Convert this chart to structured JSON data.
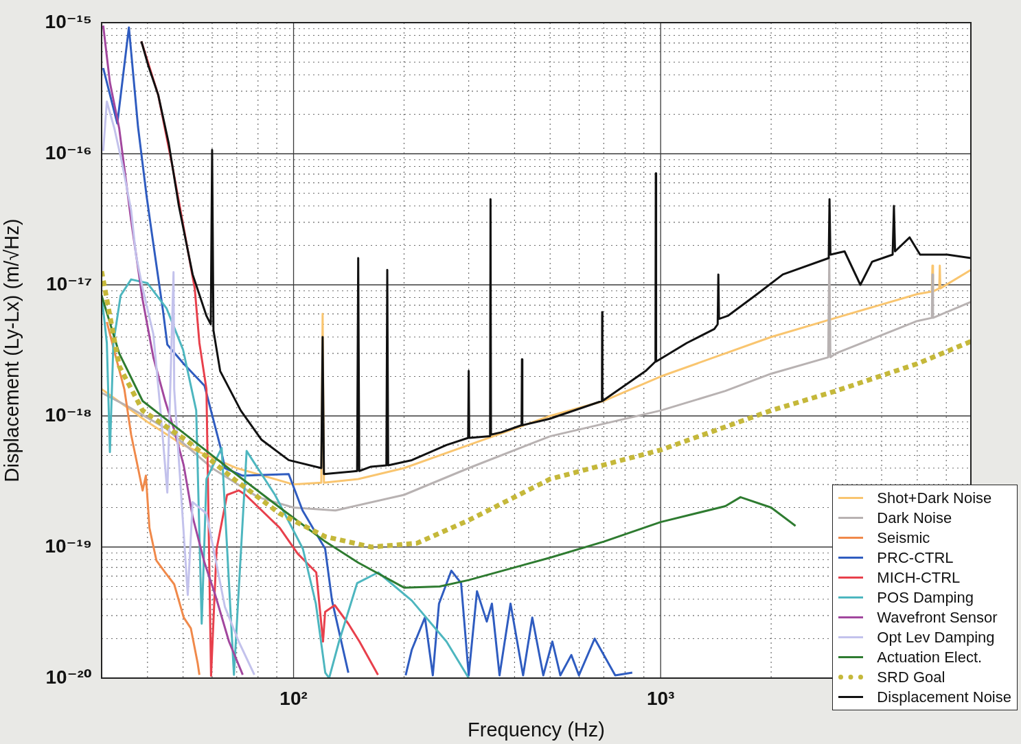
{
  "chart_data": {
    "type": "line",
    "xlabel": "Frequency (Hz)",
    "ylabel": "Displacement (Ly-Lx) (m/√Hz)",
    "log": "xy",
    "grid": true,
    "legend": "bottom right",
    "xlim": [
      30,
      7000
    ],
    "ylim": [
      1e-20,
      1e-15
    ],
    "xticks": [
      {
        "value": 40,
        "label": null
      },
      {
        "value": 50,
        "label": null
      },
      {
        "value": 60,
        "label": null
      },
      {
        "value": 70,
        "label": null
      },
      {
        "value": 80,
        "label": null
      },
      {
        "value": 90,
        "label": null
      },
      {
        "value": 100,
        "label": "10²"
      },
      {
        "value": 200,
        "label": null
      },
      {
        "value": 300,
        "label": null
      },
      {
        "value": 400,
        "label": null
      },
      {
        "value": 500,
        "label": null
      },
      {
        "value": 600,
        "label": null
      },
      {
        "value": 700,
        "label": null
      },
      {
        "value": 800,
        "label": null
      },
      {
        "value": 900,
        "label": null
      },
      {
        "value": 1000,
        "label": "10³"
      },
      {
        "value": 2000,
        "label": null
      },
      {
        "value": 3000,
        "label": null
      },
      {
        "value": 4000,
        "label": null
      },
      {
        "value": 5000,
        "label": null
      },
      {
        "value": 6000,
        "label": null
      }
    ],
    "yticks": [
      {
        "value": 1e-20,
        "label": "10⁻²⁰"
      },
      {
        "value": 2e-20,
        "label": null
      },
      {
        "value": 3e-20,
        "label": null
      },
      {
        "value": 4e-20,
        "label": null
      },
      {
        "value": 5e-20,
        "label": null
      },
      {
        "value": 6e-20,
        "label": null
      },
      {
        "value": 7e-20,
        "label": null
      },
      {
        "value": 8e-20,
        "label": null
      },
      {
        "value": 9e-20,
        "label": null
      },
      {
        "value": 1e-19,
        "label": "10⁻¹⁹"
      },
      {
        "value": 2e-19,
        "label": null
      },
      {
        "value": 3e-19,
        "label": null
      },
      {
        "value": 4e-19,
        "label": null
      },
      {
        "value": 5e-19,
        "label": null
      },
      {
        "value": 6e-19,
        "label": null
      },
      {
        "value": 7e-19,
        "label": null
      },
      {
        "value": 8e-19,
        "label": null
      },
      {
        "value": 9e-19,
        "label": null
      },
      {
        "value": 1e-18,
        "label": "10⁻¹⁸"
      },
      {
        "value": 2e-18,
        "label": null
      },
      {
        "value": 3e-18,
        "label": null
      },
      {
        "value": 4e-18,
        "label": null
      },
      {
        "value": 5e-18,
        "label": null
      },
      {
        "value": 6e-18,
        "label": null
      },
      {
        "value": 7e-18,
        "label": null
      },
      {
        "value": 8e-18,
        "label": null
      },
      {
        "value": 9e-18,
        "label": null
      },
      {
        "value": 1e-17,
        "label": "10⁻¹⁷"
      },
      {
        "value": 2e-17,
        "label": null
      },
      {
        "value": 3e-17,
        "label": null
      },
      {
        "value": 4e-17,
        "label": null
      },
      {
        "value": 5e-17,
        "label": null
      },
      {
        "value": 6e-17,
        "label": null
      },
      {
        "value": 7e-17,
        "label": null
      },
      {
        "value": 8e-17,
        "label": null
      },
      {
        "value": 9e-17,
        "label": null
      },
      {
        "value": 1e-16,
        "label": "10⁻¹⁶"
      },
      {
        "value": 2e-16,
        "label": null
      },
      {
        "value": 3e-16,
        "label": null
      },
      {
        "value": 4e-16,
        "label": null
      },
      {
        "value": 5e-16,
        "label": null
      },
      {
        "value": 6e-16,
        "label": null
      },
      {
        "value": 7e-16,
        "label": null
      },
      {
        "value": 8e-16,
        "label": null
      },
      {
        "value": 9e-16,
        "label": null
      },
      {
        "value": 1e-15,
        "label": "10⁻¹⁵"
      }
    ],
    "series": [
      {
        "name": "Shot+Dark Noise",
        "color": "#f9c56f",
        "x": [
          30,
          40,
          50,
          70,
          100,
          119,
          120,
          121,
          150,
          200,
          300,
          500,
          700,
          1000,
          1500,
          2000,
          3000,
          5000,
          5480,
          5500,
          5520,
          5740,
          5760,
          5780,
          7000
        ],
        "values": [
          1.6e-18,
          9e-19,
          6e-19,
          4e-19,
          3e-19,
          3.1e-19,
          6e-18,
          3.1e-19,
          3.3e-19,
          4e-19,
          6e-19,
          1e-18,
          1.3e-18,
          2e-18,
          3e-18,
          4e-18,
          5.6e-18,
          8.5e-18,
          8.9e-18,
          1.4e-17,
          8.9e-18,
          9.4e-18,
          1.4e-17,
          9.4e-18,
          1.3e-17
        ]
      },
      {
        "name": "Dark Noise",
        "color": "#b8b2b2",
        "x": [
          30,
          35,
          45,
          60,
          80,
          100,
          130,
          200,
          300,
          500,
          1000,
          1500,
          2000,
          2860,
          2880,
          2900,
          3000,
          5000,
          5480,
          5500,
          5520,
          7000
        ],
        "values": [
          1.5e-18,
          1.2e-18,
          8e-19,
          4e-19,
          2.4e-19,
          2e-19,
          1.9e-19,
          2.5e-19,
          4e-19,
          7e-19,
          1.1e-18,
          1.55e-18,
          2.1e-18,
          2.8e-18,
          1.6e-17,
          2.8e-18,
          3e-18,
          5.3e-18,
          5.6e-18,
          1.2e-17,
          5.6e-18,
          7.4e-18
        ]
      },
      {
        "name": "Seismic",
        "color": "#f0894a",
        "x": [
          31,
          32.7,
          34.6,
          36.1,
          37.7,
          38.8,
          39.6,
          40.5,
          42.3,
          44.7,
          47.3,
          50.2,
          52.5,
          54.8,
          55.4
        ],
        "values": [
          5.2e-18,
          2.9e-18,
          1.6e-18,
          7.2e-19,
          4e-19,
          2.7e-19,
          3.5e-19,
          1.4e-19,
          7.9e-20,
          6.4e-20,
          5.2e-20,
          2.9e-20,
          2.4e-20,
          1.3e-20,
          1.06e-20
        ]
      },
      {
        "name": "PRC-CTRL",
        "color": "#2f5cc0",
        "x": [
          30.3,
          33.1,
          35.6,
          37.7,
          39.8,
          41,
          44.1,
          45.3,
          50.2,
          57.2,
          63.2,
          65,
          72.7,
          97,
          105.8,
          121.9,
          127.3,
          141,
          170,
          202,
          210,
          228,
          239.5,
          249,
          269,
          286,
          300,
          316,
          336,
          347,
          364,
          390,
          422,
          447,
          479,
          507,
          533,
          571,
          599,
          661,
          752,
          837
        ],
        "values": [
          4.5e-16,
          1.7e-16,
          9.2e-16,
          1.6e-16,
          4.7e-17,
          2.6e-17,
          6.3e-18,
          3.5e-18,
          2.5e-18,
          1.7e-18,
          5.8e-19,
          4e-19,
          3.5e-19,
          3.6e-19,
          1.9e-19,
          9.7e-20,
          3.9e-20,
          1.1e-20,
          null,
          1.05e-20,
          1.65e-20,
          2.9e-20,
          1.05e-20,
          3.7e-20,
          6.6e-20,
          5.3e-20,
          1.05e-20,
          4.6e-20,
          2.7e-20,
          3.7e-20,
          1.05e-20,
          3.7e-20,
          1.05e-20,
          2.9e-20,
          1.05e-20,
          1.9e-20,
          1.05e-20,
          1.5e-20,
          1.05e-20,
          2e-20,
          1.05e-20,
          1.1e-20
        ]
      },
      {
        "name": "MICH-CTRL",
        "color": "#e8404c",
        "x": [
          38.5,
          42.8,
          46.7,
          50.9,
          53.8,
          55.4,
          57.9,
          59.6,
          61.7,
          65.9,
          70.9,
          74,
          91.7,
          102.6,
          115.3,
          120.3,
          121.9,
          129.5,
          141,
          151.2,
          169.8
        ],
        "values": [
          7.2e-16,
          2.8e-16,
          8.2e-17,
          2.2e-17,
          9.4e-18,
          3.6e-18,
          1.6e-18,
          1.04e-20,
          9.6e-20,
          2.5e-19,
          2.7e-19,
          2.5e-19,
          1.4e-19,
          8.9e-20,
          6.4e-20,
          1.9e-20,
          3.2e-20,
          3.6e-20,
          2.6e-20,
          1.9e-20,
          1.06e-20
        ]
      },
      {
        "name": "POS Damping",
        "color": "#4db6bf",
        "x": [
          30,
          31,
          31.6,
          32.3,
          33.8,
          36.1,
          40,
          45.1,
          50,
          54.3,
          56.2,
          57.9,
          63.7,
          68.8,
          74.5,
          89,
          106,
          115,
          122,
          125,
          133,
          149,
          170,
          210,
          261,
          300
        ],
        "values": [
          8.3e-18,
          3.6e-18,
          5.3e-19,
          3.6e-18,
          8.3e-18,
          1.1e-17,
          1.03e-17,
          6.6e-18,
          3.2e-18,
          1.1e-18,
          2.6e-20,
          3.3e-19,
          5.7e-19,
          1.06e-20,
          5.4e-19,
          2.5e-19,
          9.7e-20,
          3.7e-20,
          1.1e-20,
          1e-20,
          1.9e-20,
          5.3e-20,
          6.4e-20,
          3.9e-20,
          1.9e-20,
          1e-20
        ]
      },
      {
        "name": "Wavefront Sensor",
        "color": "#a2479e",
        "x": [
          30.3,
          31.6,
          33.5,
          36.1,
          38.8,
          41.5,
          44.7,
          47.3,
          50.2,
          53.1,
          57.2,
          61.2,
          66.7,
          72.7
        ],
        "values": [
          9.5e-16,
          3.5e-16,
          1.56e-16,
          3.1e-17,
          7.7e-18,
          2.8e-18,
          1.3e-18,
          7.8e-19,
          4.2e-19,
          1.7e-19,
          7.6e-20,
          4.3e-20,
          1.9e-20,
          1.06e-20
        ]
      },
      {
        "name": "Opt Lev Damping",
        "color": "#c3c2ec",
        "x": [
          30.3,
          31,
          32.5,
          34.1,
          36.1,
          37.2,
          38.8,
          41.5,
          43.4,
          45.3,
          47.1,
          47.3,
          51.5,
          53.1,
          57.9,
          65,
          70.9,
          78.2
        ],
        "values": [
          1.05e-16,
          2.5e-16,
          1.56e-16,
          8.5e-17,
          3.7e-17,
          1.7e-17,
          9.4e-18,
          4.2e-18,
          1.1e-18,
          2.6e-19,
          1.25e-17,
          1.6e-18,
          4.3e-20,
          2.2e-19,
          1.8e-19,
          3.5e-20,
          1.9e-20,
          1.06e-20
        ]
      },
      {
        "name": "Actuation Elect.",
        "color": "#2e7b30",
        "x": [
          30,
          33.5,
          38.8,
          51.5,
          68.8,
          91.7,
          122,
          150,
          200,
          250,
          300,
          500,
          700,
          1000,
          1500,
          1650,
          2000,
          2330
        ],
        "values": [
          8.3e-18,
          3e-18,
          1.3e-18,
          7e-19,
          3.7e-19,
          2e-19,
          1.1e-19,
          7.6e-20,
          4.9e-20,
          5e-20,
          5.6e-20,
          8.3e-20,
          1.1e-19,
          1.55e-19,
          2.05e-19,
          2.4e-19,
          2e-19,
          1.45e-19
        ]
      },
      {
        "name": "SRD Goal",
        "color": "#c5b83a",
        "line_style": "dotted",
        "x": [
          30,
          31.6,
          33.5,
          38.8,
          51.5,
          68.8,
          91.7,
          122,
          163,
          217,
          300,
          500,
          1000,
          2000,
          3000,
          5000,
          7000
        ],
        "values": [
          1.27e-17,
          5.8e-18,
          2.4e-18,
          1.1e-18,
          6.4e-19,
          3.3e-19,
          1.8e-19,
          1.2e-19,
          1e-19,
          1.07e-19,
          1.6e-19,
          3.3e-19,
          5.5e-19,
          1.1e-18,
          1.55e-18,
          2.5e-18,
          3.7e-18
        ]
      },
      {
        "name": "Displacement Noise",
        "color": "#111111",
        "x": [
          38.5,
          40.2,
          42.8,
          45.7,
          48.7,
          53.1,
          57.9,
          59.5,
          60,
          60.5,
          63.1,
          71.8,
          81.7,
          97,
          119,
          120,
          121,
          149,
          150,
          151,
          162.6,
          179,
          180,
          181,
          210,
          261,
          299,
          300,
          301,
          343,
          344,
          345,
          368,
          418,
          419,
          420,
          498,
          692,
          693,
          694,
          910,
          968,
          970,
          972,
          1178,
          1400,
          1430,
          1436,
          1442,
          1524,
          1811,
          2152,
          2870,
          2884,
          2900,
          3170,
          3500,
          3767,
          4285,
          4320,
          4350,
          4768,
          5090,
          6040,
          7000
        ],
        "values": [
          7.2e-16,
          4.7e-16,
          2.8e-16,
          1.2e-16,
          4e-17,
          1.2e-17,
          5.8e-18,
          5e-18,
          1.07e-16,
          4.5e-18,
          2.2e-18,
          1.1e-18,
          6.6e-19,
          4.6e-19,
          4e-19,
          4e-18,
          3.6e-19,
          3.8e-19,
          1.6e-17,
          3.8e-19,
          4.1e-19,
          4.2e-19,
          1.3e-17,
          4.2e-19,
          4.6e-19,
          6e-19,
          6.8e-19,
          2.2e-18,
          6.8e-19,
          7e-19,
          4.5e-17,
          7.2e-19,
          7.5e-19,
          8.5e-19,
          2.7e-18,
          8.5e-19,
          9.5e-19,
          1.3e-18,
          6.2e-18,
          1.3e-18,
          2.2e-18,
          2.6e-18,
          7.1e-17,
          2.6e-18,
          3.6e-18,
          4.6e-18,
          5e-18,
          1.2e-17,
          5.5e-18,
          5.8e-18,
          8.3e-18,
          1.2e-17,
          1.6e-17,
          4.5e-17,
          1.7e-17,
          1.8e-17,
          1e-17,
          1.5e-17,
          1.7e-17,
          4e-17,
          1.8e-17,
          2.3e-17,
          1.7e-17,
          1.7e-17,
          1.6e-17
        ]
      }
    ]
  }
}
